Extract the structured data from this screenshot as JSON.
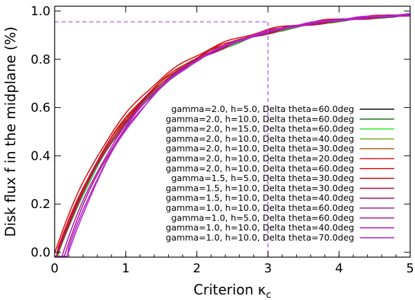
{
  "chart_data": {
    "type": "line",
    "xlabel": "Criterion κ",
    "xlabel_sub": "c",
    "ylabel": "Disk flux f in the  midplane (%)",
    "xlim": [
      0,
      5
    ],
    "ylim": [
      -0.02,
      1.02
    ],
    "x_ticks": [
      0,
      1,
      2,
      3,
      4,
      5
    ],
    "y_ticks": [
      0.0,
      0.2,
      0.4,
      0.6,
      0.8,
      1.0
    ],
    "x_tick_labels": [
      "0",
      "1",
      "2",
      "3",
      "4",
      "5"
    ],
    "y_tick_labels": [
      "0.0",
      "0.2",
      "0.4",
      "0.6",
      "0.8",
      "1.0"
    ],
    "grid": false,
    "legend_position": "lower-right",
    "reference_lines": {
      "y": 0.955,
      "x": 3.0,
      "color": "#9b4dff",
      "style": "dashed"
    },
    "series": [
      {
        "name": "gamma=2.0, h=5.0, Delta theta=60.0deg",
        "color": "#000000",
        "x0": 0.05,
        "k": 0.82
      },
      {
        "name": "gamma=2.0, h=10.0, Delta theta=60.0deg",
        "color": "#1e7a1e",
        "x0": 0.06,
        "k": 0.81
      },
      {
        "name": "gamma=2.0, h=15.0, Delta theta=60.0deg",
        "color": "#2ee82e",
        "x0": 0.06,
        "k": 0.81
      },
      {
        "name": "gamma=2.0, h=10.0, Delta theta=40.0deg",
        "color": "#79b42e",
        "x0": 0.05,
        "k": 0.82
      },
      {
        "name": "gamma=2.0, h=10.0, Delta theta=30.0deg",
        "color": "#b06a1a",
        "x0": 0.04,
        "k": 0.83
      },
      {
        "name": "gamma=2.0, h=10.0, Delta theta=20.0deg",
        "color": "#e01010",
        "x0": 0.0,
        "k": 0.85
      },
      {
        "name": "gamma=2.0, h=10.0, Delta theta=60.0deg",
        "color": "#d01c1c",
        "x0": 0.03,
        "k": 0.84
      },
      {
        "name": "gamma=1.5, h=5.0, Delta theta=30.0deg",
        "color": "#c41818",
        "x0": 0.03,
        "k": 0.83
      },
      {
        "name": "gamma=1.5, h=10.0, Delta theta=30.0deg",
        "color": "#b8143c",
        "x0": 0.04,
        "k": 0.82
      },
      {
        "name": "gamma=1.5, h=10.0, Delta theta=40.0deg",
        "color": "#b41262",
        "x0": 0.05,
        "k": 0.81
      },
      {
        "name": "gamma=1.0, h=10.0, Delta theta=60.0deg",
        "color": "#a81888",
        "x0": 0.15,
        "k": 0.86
      },
      {
        "name": "gamma=1.0, h=5.0, Delta theta=60.0deg",
        "color": "#b01ca8",
        "x0": 0.12,
        "k": 0.85
      },
      {
        "name": "gamma=1.0, h=10.0, Delta theta=40.0deg",
        "color": "#b020c0",
        "x0": 0.18,
        "k": 0.87
      },
      {
        "name": "gamma=1.0, h=10.0, Delta theta=70.0deg",
        "color": "#b826d8",
        "x0": 0.2,
        "k": 0.88
      }
    ]
  }
}
